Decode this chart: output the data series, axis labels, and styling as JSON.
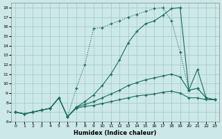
{
  "xlabel": "Humidex (Indice chaleur)",
  "bg_color": "#cce8e8",
  "grid_color": "#aacccc",
  "line_color": "#1a6b5a",
  "xlim": [
    -0.5,
    23.5
  ],
  "ylim": [
    6.0,
    18.5
  ],
  "x": [
    0,
    1,
    2,
    3,
    4,
    5,
    6,
    7,
    8,
    9,
    10,
    11,
    12,
    13,
    14,
    15,
    16,
    17,
    18,
    19,
    20,
    21,
    22,
    23
  ],
  "line1_y": [
    7.0,
    6.8,
    7.0,
    7.2,
    7.4,
    8.5,
    6.5,
    7.4,
    7.6,
    7.7,
    7.9,
    8.1,
    8.3,
    8.5,
    8.7,
    8.8,
    8.9,
    9.1,
    9.2,
    9.0,
    8.5,
    8.5,
    8.3,
    8.3
  ],
  "line1_style": "-",
  "line2_y": [
    7.0,
    6.8,
    7.0,
    7.2,
    7.4,
    8.5,
    6.5,
    7.5,
    7.8,
    8.1,
    8.5,
    8.9,
    9.3,
    9.8,
    10.1,
    10.4,
    10.6,
    10.8,
    11.0,
    10.7,
    9.3,
    11.5,
    8.5,
    8.3
  ],
  "line2_style": "-",
  "line3_y": [
    7.0,
    6.8,
    7.0,
    7.2,
    7.4,
    8.5,
    6.5,
    7.5,
    8.1,
    8.8,
    9.8,
    11.0,
    12.5,
    14.3,
    15.5,
    16.3,
    16.6,
    17.2,
    17.9,
    18.0,
    9.3,
    9.5,
    8.5,
    8.3
  ],
  "line3_style": "-",
  "line4_y": [
    7.0,
    6.8,
    7.0,
    7.2,
    7.4,
    8.5,
    6.5,
    9.5,
    12.0,
    15.8,
    15.9,
    16.3,
    16.6,
    17.0,
    17.3,
    17.6,
    17.9,
    18.0,
    16.6,
    13.3,
    9.3,
    9.5,
    8.5,
    8.3
  ],
  "line4_style": ":"
}
